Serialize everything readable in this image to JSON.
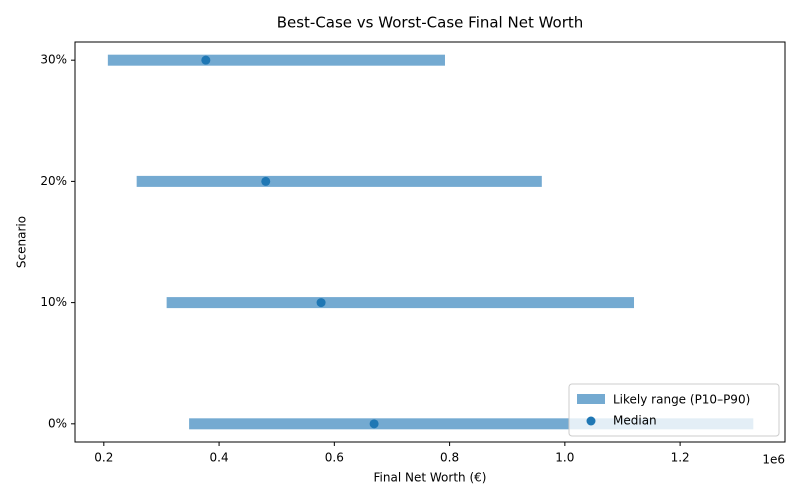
{
  "chart_data": {
    "type": "range",
    "title": "Best-Case vs Worst-Case Final Net Worth",
    "x_label": "Final Net Worth (€)",
    "y_label": "Scenario",
    "x_offset_label": "1e6",
    "categories": [
      "0%",
      "10%",
      "20%",
      "30%"
    ],
    "series": [
      {
        "name": "Likely range (P10–P90)",
        "color": "#74aad1",
        "low": [
          348000,
          309000,
          257000,
          207000
        ],
        "high": [
          1327000,
          1120000,
          960000,
          792000
        ]
      },
      {
        "name": "Median",
        "color": "#1f77b4",
        "values": [
          669000,
          577000,
          481000,
          377000
        ]
      }
    ],
    "xlim": [
      150000,
      1382000
    ],
    "xticks": [
      {
        "value": 200000,
        "label": "0.2"
      },
      {
        "value": 400000,
        "label": "0.4"
      },
      {
        "value": 600000,
        "label": "0.6"
      },
      {
        "value": 800000,
        "label": "0.8"
      },
      {
        "value": 1000000,
        "label": "1.0"
      },
      {
        "value": 1200000,
        "label": "1.2"
      }
    ],
    "legend": "lower right"
  }
}
